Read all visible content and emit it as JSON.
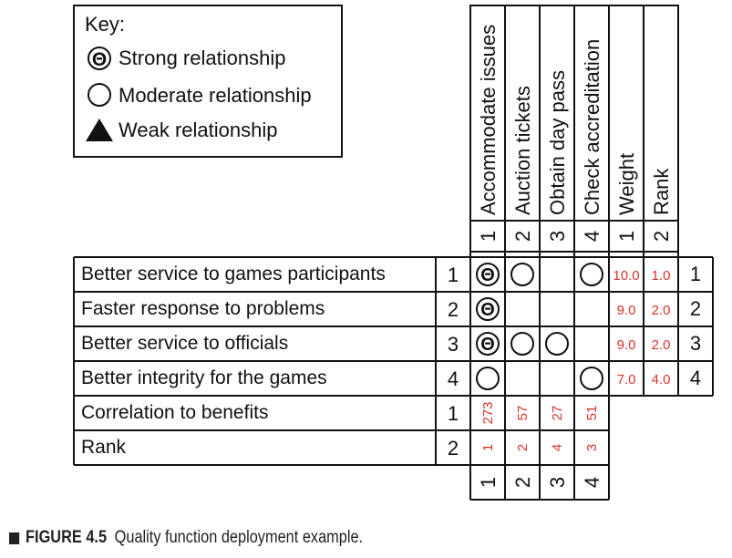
{
  "key": {
    "title": "Key:",
    "strong": "Strong relationship",
    "moderate": "Moderate relationship",
    "weak": "Weak relationship",
    "strong_symbol": "Θ"
  },
  "columns": [
    {
      "name": "Accommodate issues",
      "number": "1"
    },
    {
      "name": "Auction tickets",
      "number": "2"
    },
    {
      "name": "Obtain day pass",
      "number": "3"
    },
    {
      "name": "Check accreditation",
      "number": "4"
    }
  ],
  "extra_columns": [
    {
      "name": "Weight",
      "number": "1"
    },
    {
      "name": "Rank",
      "number": "2"
    }
  ],
  "rows": [
    {
      "label": "Better service to games participants",
      "number": "1",
      "cells": [
        "strong",
        "moderate",
        "",
        "moderate"
      ],
      "weight": "10.0",
      "rank": "1.0",
      "final_rank": "1"
    },
    {
      "label": "Faster response to problems",
      "number": "2",
      "cells": [
        "strong",
        "",
        "",
        ""
      ],
      "weight": "9.0",
      "rank": "2.0",
      "final_rank": "2"
    },
    {
      "label": "Better service to officials",
      "number": "3",
      "cells": [
        "strong",
        "moderate",
        "moderate",
        ""
      ],
      "weight": "9.0",
      "rank": "2.0",
      "final_rank": "3"
    },
    {
      "label": "Better integrity for the games",
      "number": "4",
      "cells": [
        "moderate",
        "",
        "",
        "moderate"
      ],
      "weight": "7.0",
      "rank": "4.0",
      "final_rank": "4"
    }
  ],
  "summary_rows": [
    {
      "label": "Correlation to benefits",
      "number": "1",
      "values": [
        "273",
        "57",
        "27",
        "51"
      ]
    },
    {
      "label": "Rank",
      "number": "2",
      "values": [
        "1",
        "2",
        "4",
        "3"
      ]
    }
  ],
  "bottom_numbers": [
    "1",
    "2",
    "3",
    "4"
  ],
  "caption": {
    "label": "FIGURE 4.5",
    "text": "Quality function deployment example."
  },
  "colors": {
    "accent_red": "#d8332d",
    "line": "#111111"
  }
}
